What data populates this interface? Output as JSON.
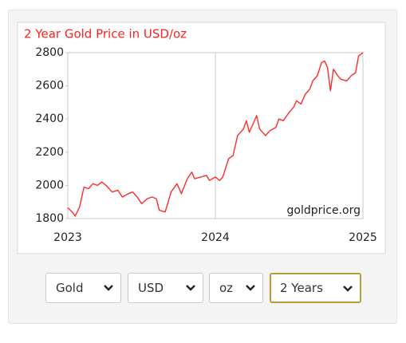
{
  "chart_data": {
    "type": "line",
    "title": "2 Year Gold Price in USD/oz",
    "x": [
      2023.0,
      2023.03,
      2023.05,
      2023.08,
      2023.11,
      2023.14,
      2023.17,
      2023.2,
      2023.23,
      2023.26,
      2023.3,
      2023.34,
      2023.37,
      2023.41,
      2023.44,
      2023.47,
      2023.5,
      2023.54,
      2023.57,
      2023.6,
      2023.62,
      2023.66,
      2023.7,
      2023.74,
      2023.77,
      2023.81,
      2023.84,
      2023.86,
      2023.9,
      2023.94,
      2023.96,
      2024.0,
      2024.03,
      2024.05,
      2024.09,
      2024.12,
      2024.15,
      2024.19,
      2024.21,
      2024.23,
      2024.26,
      2024.28,
      2024.3,
      2024.34,
      2024.37,
      2024.41,
      2024.43,
      2024.46,
      2024.5,
      2024.53,
      2024.55,
      2024.58,
      2024.61,
      2024.64,
      2024.66,
      2024.69,
      2024.72,
      2024.74,
      2024.76,
      2024.78,
      2024.8,
      2024.83,
      2024.85,
      2024.89,
      2024.92,
      2024.95,
      2024.97,
      2025.0
    ],
    "series": [
      {
        "color": "#ff2a2a",
        "values": [
          1865,
          1840,
          1815,
          1870,
          1990,
          1980,
          2010,
          2000,
          2020,
          2000,
          1960,
          1970,
          1930,
          1950,
          1960,
          1930,
          1890,
          1920,
          1930,
          1920,
          1850,
          1840,
          1960,
          2010,
          1950,
          2040,
          2080,
          2040,
          2050,
          2060,
          2030,
          2050,
          2030,
          2050,
          2160,
          2180,
          2300,
          2340,
          2390,
          2320,
          2380,
          2420,
          2340,
          2300,
          2330,
          2350,
          2400,
          2390,
          2440,
          2470,
          2510,
          2490,
          2550,
          2580,
          2630,
          2660,
          2740,
          2750,
          2710,
          2570,
          2700,
          2660,
          2640,
          2630,
          2660,
          2680,
          2780,
          2800
        ]
      }
    ],
    "xlim": [
      2023,
      2025
    ],
    "xticks": [
      2023,
      2024,
      2025
    ],
    "ylim": [
      1800,
      2800
    ],
    "yticks": [
      1800,
      2000,
      2200,
      2400,
      2600,
      2800
    ],
    "grid": "x",
    "annotation": "goldprice.org"
  },
  "controls": [
    "Gold",
    "USD",
    "oz",
    "2 Years"
  ]
}
